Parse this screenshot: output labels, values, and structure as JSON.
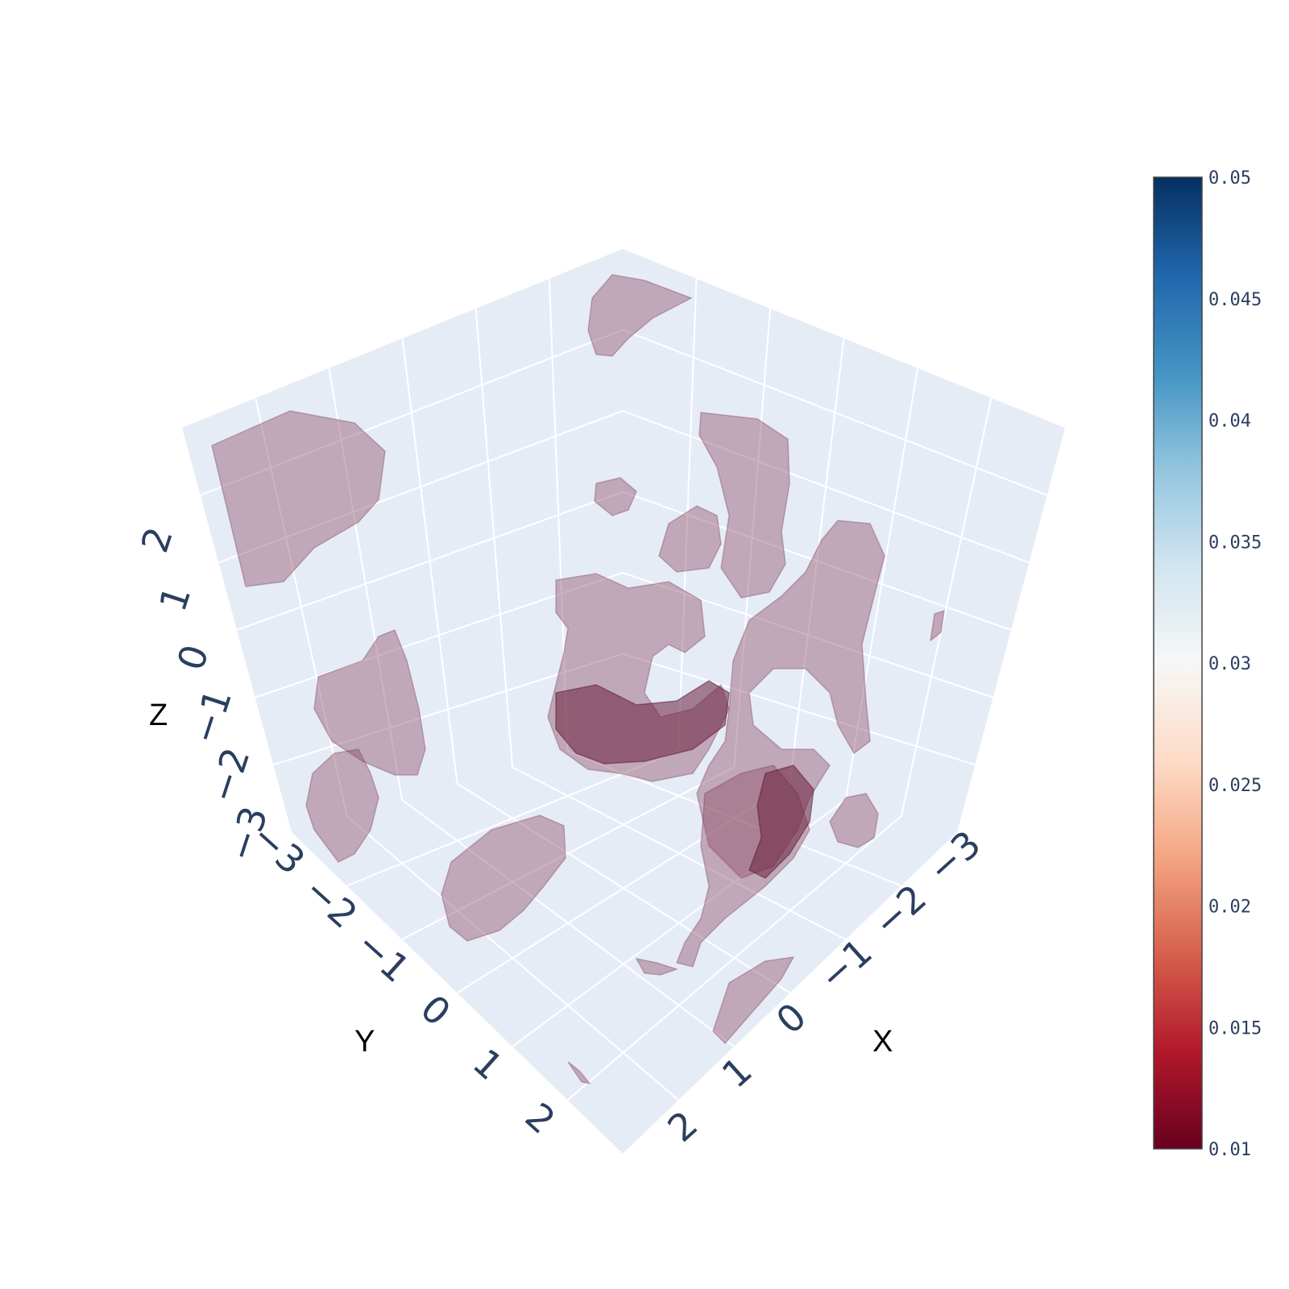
{
  "chart_data": {
    "type": "isosurface",
    "title": "",
    "axes": {
      "x": {
        "title": "X",
        "ticks": [
          "−3",
          "−2",
          "−1",
          "0",
          "1",
          "2"
        ],
        "range": [
          -3,
          3
        ]
      },
      "y": {
        "title": "Y",
        "ticks": [
          "−3",
          "−2",
          "−1",
          "0",
          "1",
          "2"
        ],
        "range": [
          -3,
          3
        ]
      },
      "z": {
        "title": "Z",
        "ticks": [
          "−3",
          "−2",
          "−1",
          "0",
          "1",
          "2"
        ],
        "range": [
          -3,
          3
        ]
      }
    },
    "grid": true,
    "scene_background": "#e5ecf6",
    "surface_opacity": 0.4,
    "colorscale": "RdBu",
    "colorbar": {
      "placement": "right",
      "ticks": [
        "0.05",
        "0.045",
        "0.04",
        "0.035",
        "0.03",
        "0.025",
        "0.02",
        "0.015",
        "0.01"
      ],
      "range": [
        0.01,
        0.05
      ],
      "colors": [
        "#67001f",
        "#b2182b",
        "#d6604d",
        "#f4a582",
        "#fddbc7",
        "#f7f7f7",
        "#d1e5f0",
        "#92c5de",
        "#4393c3",
        "#2166ac",
        "#053061"
      ]
    }
  }
}
